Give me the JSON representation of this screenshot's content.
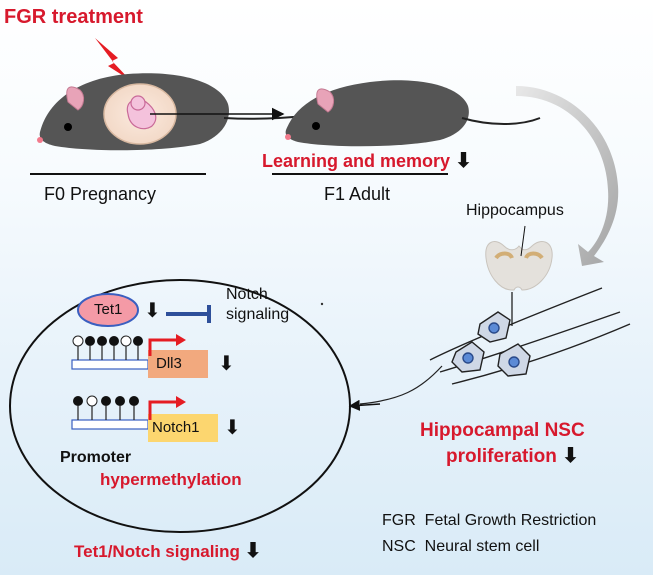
{
  "title": "FGR  treatment",
  "labels": {
    "f0": "F0 Pregnancy",
    "f1": "F1 Adult",
    "learning": "Learning and memory",
    "hippocampus": "Hippocampus",
    "nsc_line1": "Hippocampal NSC",
    "nsc_line2": "proliferation",
    "tet1": "Tet1",
    "notch_line1": "Notch",
    "notch_line2": "signaling",
    "dll3": "Dll3",
    "notch1": "Notch1",
    "promoter": "Promoter",
    "hypermethylation": "hypermethylation",
    "bottom": "Tet1/Notch signaling",
    "down_arrow": "⬇"
  },
  "legend": [
    {
      "abbr": "FGR",
      "full": "Fetal Growth Restriction"
    },
    {
      "abbr": "NSC",
      "full": "Neural stem cell"
    }
  ],
  "colors": {
    "accent_red": "#d7192d",
    "mouse": "#555555",
    "ear": "#e8a3b8",
    "womb": "#f7e2d2",
    "embryo": "#f4c2dc",
    "tet1_fill": "#f49aa6",
    "dll3_box": "#f2a97e",
    "notch1_box": "#fcd66f",
    "inhibit_arrow": "#2e4f9a",
    "nucleus": "#5b8ad6"
  }
}
